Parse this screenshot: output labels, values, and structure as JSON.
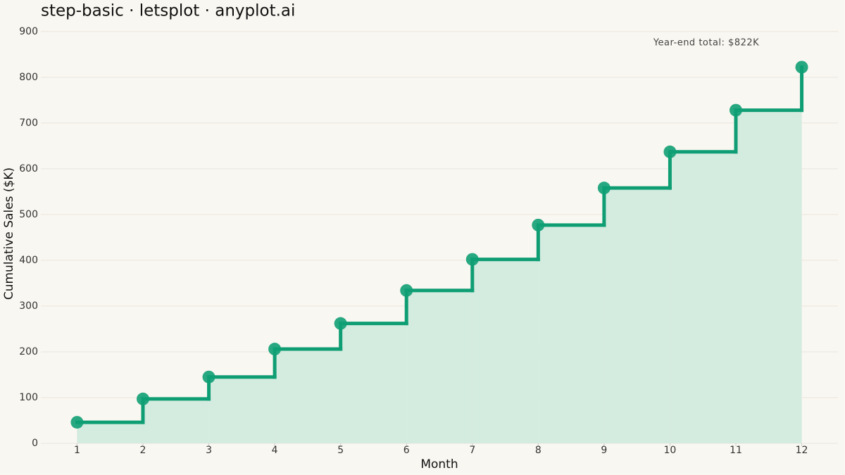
{
  "chart_data": {
    "type": "step",
    "title": "step-basic · letsplot · anyplot.ai",
    "x_label": "Month",
    "y_label": "Cumulative Sales ($K)",
    "annotation": "Year-end total: $822K",
    "x": [
      1,
      2,
      3,
      4,
      5,
      6,
      7,
      8,
      9,
      10,
      11,
      12
    ],
    "series": [
      {
        "name": "Cumulative Sales",
        "color": "#0f9e74",
        "values": [
          46,
          97,
          145,
          206,
          262,
          334,
          402,
          477,
          558,
          637,
          728,
          822
        ]
      }
    ],
    "area_color": "#d4ebdf",
    "xlim": [
      0.45,
      12.55
    ],
    "xticks": [
      1,
      2,
      3,
      4,
      5,
      6,
      7,
      8,
      9,
      10,
      11,
      12
    ],
    "ylim": [
      0,
      915
    ],
    "yticks": [
      0,
      100,
      200,
      300,
      400,
      500,
      600,
      700,
      800,
      900
    ],
    "grid": true
  }
}
